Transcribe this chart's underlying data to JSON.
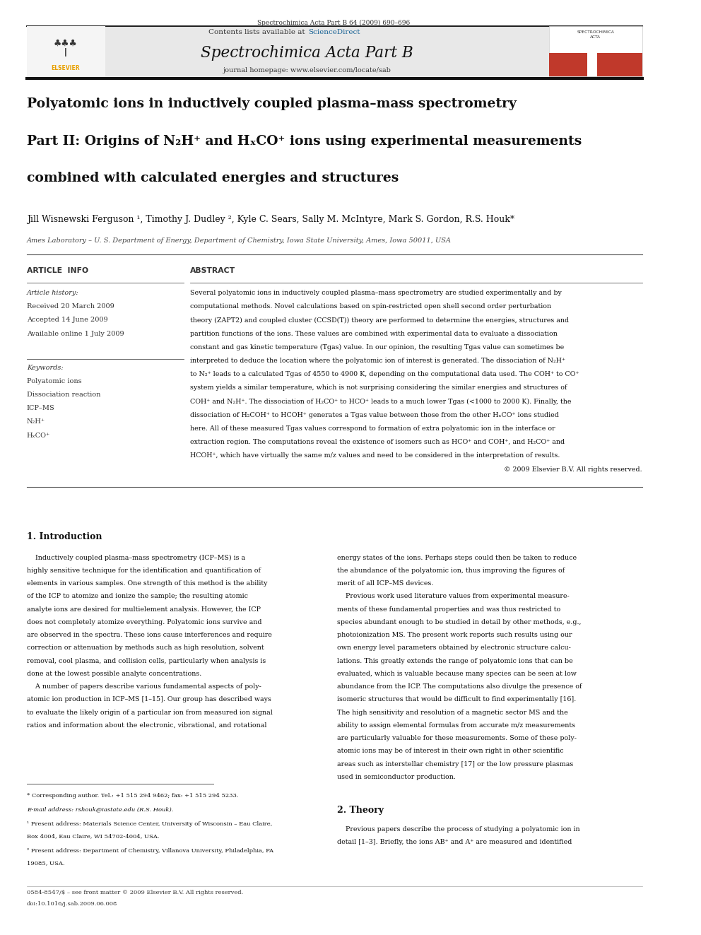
{
  "page_width": 9.92,
  "page_height": 13.23,
  "background_color": "#ffffff",
  "top_journal_line": "Spectrochimica Acta Part B 64 (2009) 690–696",
  "header_journal_name": "Spectrochimica Acta Part B",
  "header_homepage": "journal homepage: www.elsevier.com/locate/sab",
  "sciencedirect_color": "#1a6496",
  "elsevier_logo_color": "#e8a000",
  "cover_red_color": "#c0392b",
  "title_line1": "Polyatomic ions in inductively coupled plasma–mass spectrometry",
  "title_line2": "Part II: Origins of N₂H⁺ and HₓCO⁺ ions using experimental measurements",
  "title_line3": "combined with calculated energies and structures",
  "authors": "Jill Wisnewski Ferguson ¹, Timothy J. Dudley ², Kyle C. Sears, Sally M. McIntyre, Mark S. Gordon, R.S. Houk*",
  "affiliation": "Ames Laboratory – U. S. Department of Energy, Department of Chemistry, Iowa State University, Ames, Iowa 50011, USA",
  "article_info_title": "ARTICLE  INFO",
  "article_history_title": "Article history:",
  "received": "Received 20 March 2009",
  "accepted": "Accepted 14 June 2009",
  "available": "Available online 1 July 2009",
  "keywords_title": "Keywords:",
  "keywords": [
    "Polyatomic ions",
    "Dissociation reaction",
    "ICP–MS",
    "N₂H⁺",
    "HₓCO⁺"
  ],
  "abstract_title": "ABSTRACT",
  "abstract_lines": [
    "Several polyatomic ions in inductively coupled plasma–mass spectrometry are studied experimentally and by",
    "computational methods. Novel calculations based on spin-restricted open shell second order perturbation",
    "theory (ZAPT2) and coupled cluster (CCSD(T)) theory are performed to determine the energies, structures and",
    "partition functions of the ions. These values are combined with experimental data to evaluate a dissociation",
    "constant and gas kinetic temperature (Tgas) value. In our opinion, the resulting Tgas value can sometimes be",
    "interpreted to deduce the location where the polyatomic ion of interest is generated. The dissociation of N₂H⁺",
    "to N₂⁺ leads to a calculated Tgas of 4550 to 4900 K, depending on the computational data used. The COH⁺ to CO⁺",
    "system yields a similar temperature, which is not surprising considering the similar energies and structures of",
    "COH⁺ and N₂H⁺. The dissociation of H₂CO⁺ to HCO⁺ leads to a much lower Tgas (<1000 to 2000 K). Finally, the",
    "dissociation of H₂COH⁺ to HCOH⁺ generates a Tgas value between those from the other HₓCO⁺ ions studied",
    "here. All of these measured Tgas values correspond to formation of extra polyatomic ion in the interface or",
    "extraction region. The computations reveal the existence of isomers such as HCO⁺ and COH⁺, and H₂CO⁺ and",
    "HCOH⁺, which have virtually the same m/z values and need to be considered in the interpretation of results.",
    "© 2009 Elsevier B.V. All rights reserved."
  ],
  "section1_title": "1. Introduction",
  "intro_col1_lines": [
    "    Inductively coupled plasma–mass spectrometry (ICP–MS) is a",
    "highly sensitive technique for the identification and quantification of",
    "elements in various samples. One strength of this method is the ability",
    "of the ICP to atomize and ionize the sample; the resulting atomic",
    "analyte ions are desired for multielement analysis. However, the ICP",
    "does not completely atomize everything. Polyatomic ions survive and",
    "are observed in the spectra. These ions cause interferences and require",
    "correction or attenuation by methods such as high resolution, solvent",
    "removal, cool plasma, and collision cells, particularly when analysis is",
    "done at the lowest possible analyte concentrations.",
    "    A number of papers describe various fundamental aspects of poly-",
    "atomic ion production in ICP–MS [1–15]. Our group has described ways",
    "to evaluate the likely origin of a particular ion from measured ion signal",
    "ratios and information about the electronic, vibrational, and rotational"
  ],
  "intro_col2_lines": [
    "energy states of the ions. Perhaps steps could then be taken to reduce",
    "the abundance of the polyatomic ion, thus improving the figures of",
    "merit of all ICP–MS devices.",
    "    Previous work used literature values from experimental measure-",
    "ments of these fundamental properties and was thus restricted to",
    "species abundant enough to be studied in detail by other methods, e.g.,",
    "photoionization MS. The present work reports such results using our",
    "own energy level parameters obtained by electronic structure calcu-",
    "lations. This greatly extends the range of polyatomic ions that can be",
    "evaluated, which is valuable because many species can be seen at low",
    "abundance from the ICP. The computations also divulge the presence of",
    "isomeric structures that would be difficult to find experimentally [16].",
    "The high sensitivity and resolution of a magnetic sector MS and the",
    "ability to assign elemental formulas from accurate m/z measurements",
    "are particularly valuable for these measurements. Some of these poly-",
    "atomic ions may be of interest in their own right in other scientific",
    "areas such as interstellar chemistry [17] or the low pressure plasmas",
    "used in semiconductor production."
  ],
  "section2_title": "2. Theory",
  "theory_lines": [
    "    Previous papers describe the process of studying a polyatomic ion in",
    "detail [1–3]. Briefly, the ions AB⁺ and A⁺ are measured and identified"
  ],
  "footnote_star": "* Corresponding author. Tel.: +1 515 294 9462; fax: +1 515 294 5233.",
  "footnote_email": "E-mail address: rshouk@iastate.edu (R.S. Houk).",
  "footnote_1": "¹ Present address: Materials Science Center, University of Wisconsin – Eau Claire,",
  "footnote_1b": "Box 4004, Eau Claire, WI 54702-4004, USA.",
  "footnote_2": "² Present address: Department of Chemistry, Villanova University, Philadelphia, PA",
  "footnote_2b": "19085, USA.",
  "bottom_line1": "0584-8547/$ – see front matter © 2009 Elsevier B.V. All rights reserved.",
  "bottom_line2": "doi:10.1016/j.sab.2009.06.008"
}
